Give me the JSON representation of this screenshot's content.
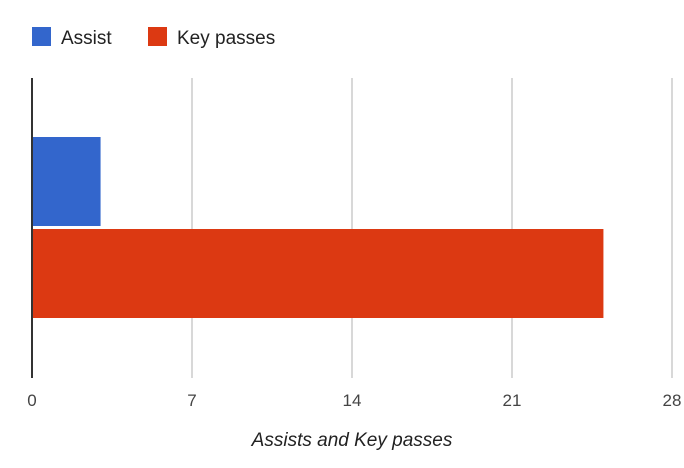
{
  "chart_data": {
    "type": "bar",
    "orientation": "horizontal",
    "categories": [
      ""
    ],
    "series": [
      {
        "name": "Assist",
        "values": [
          3
        ],
        "color": "#3366cc"
      },
      {
        "name": "Key passes",
        "values": [
          25
        ],
        "color": "#dc3912"
      }
    ],
    "xlabel": "Assists and Key passes",
    "ylabel": "",
    "xlim": [
      0,
      28
    ],
    "xticks": [
      "0",
      "7",
      "14",
      "21",
      "28"
    ],
    "grid": true,
    "legend": "top-left"
  }
}
